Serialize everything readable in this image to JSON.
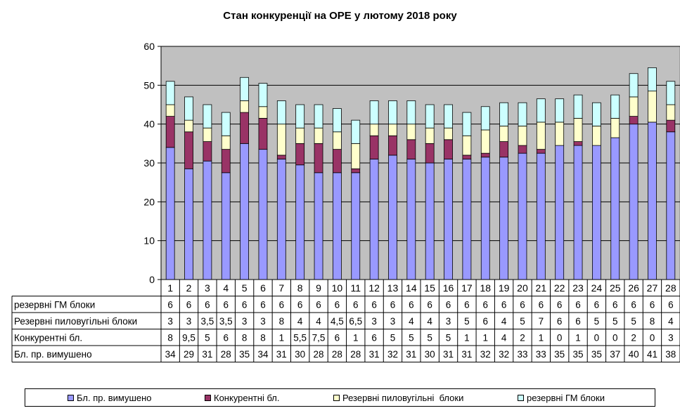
{
  "chart_data": {
    "type": "bar",
    "stacked": true,
    "title": "Стан конкуренції на ОРЕ  у лютому 2018 року",
    "categories": [
      "1",
      "2",
      "3",
      "4",
      "5",
      "6",
      "7",
      "8",
      "9",
      "10",
      "11",
      "12",
      "13",
      "14",
      "15",
      "16",
      "17",
      "18",
      "19",
      "20",
      "21",
      "22",
      "23",
      "24",
      "25",
      "26",
      "27",
      "28"
    ],
    "ylim": [
      0,
      60
    ],
    "yticks": [
      "0",
      "10",
      "20",
      "30",
      "40",
      "50",
      "60"
    ],
    "grid": true,
    "legend_position": "bottom",
    "plot_background": "#c0c0c0",
    "series": [
      {
        "name": "Бл. пр. вимушено",
        "color": "#9999ff",
        "values": [
          34,
          28.5,
          30.5,
          27.5,
          35,
          33.5,
          31,
          29.5,
          27.5,
          27.5,
          27.5,
          31,
          32,
          31,
          30,
          31,
          31,
          31.5,
          31.5,
          32.5,
          32.5,
          34.5,
          34.5,
          34.5,
          36.5,
          40,
          40.5,
          38
        ],
        "table_labels": [
          "34",
          "29",
          "31",
          "28",
          "35",
          "34",
          "31",
          "30",
          "28",
          "28",
          "28",
          "31",
          "32",
          "31",
          "30",
          "31",
          "31",
          "32",
          "32",
          "33",
          "33",
          "35",
          "35",
          "35",
          "37",
          "40",
          "41",
          "38"
        ]
      },
      {
        "name": "Конкурентні бл.",
        "color": "#993366",
        "values": [
          8,
          9.5,
          5,
          6,
          8,
          8,
          1,
          5.5,
          7.5,
          6,
          1,
          6,
          5,
          5,
          5,
          5,
          1,
          1,
          4,
          2,
          1,
          0,
          1,
          0,
          0,
          2,
          0,
          3
        ],
        "table_labels": [
          "8",
          "9,5",
          "5",
          "6",
          "8",
          "8",
          "1",
          "5,5",
          "7,5",
          "6",
          "1",
          "6",
          "5",
          "5",
          "5",
          "5",
          "1",
          "1",
          "4",
          "2",
          "1",
          "0",
          "1",
          "0",
          "0",
          "2",
          "0",
          "3"
        ]
      },
      {
        "name": "Резервні пиловугільні  блоки",
        "color": "#ffffcc",
        "values": [
          3,
          3,
          3.5,
          3.5,
          3,
          3,
          8,
          4,
          4,
          4.5,
          6.5,
          3,
          3,
          4,
          4,
          3,
          5,
          6,
          4,
          5,
          7,
          6,
          6,
          5,
          5,
          5,
          8,
          4
        ],
        "table_labels": [
          "3",
          "3",
          "3,5",
          "3,5",
          "3",
          "3",
          "8",
          "4",
          "4",
          "4,5",
          "6,5",
          "3",
          "3",
          "4",
          "4",
          "3",
          "5",
          "6",
          "4",
          "5",
          "7",
          "6",
          "6",
          "5",
          "5",
          "5",
          "8",
          "4"
        ]
      },
      {
        "name": "резервні ГМ блоки",
        "color": "#ccffff",
        "values": [
          6,
          6,
          6,
          6,
          6,
          6,
          6,
          6,
          6,
          6,
          6,
          6,
          6,
          6,
          6,
          6,
          6,
          6,
          6,
          6,
          6,
          6,
          6,
          6,
          6,
          6,
          6,
          6
        ],
        "table_labels": [
          "6",
          "6",
          "6",
          "6",
          "6",
          "6",
          "6",
          "6",
          "6",
          "6",
          "6",
          "6",
          "6",
          "6",
          "6",
          "6",
          "6",
          "6",
          "6",
          "6",
          "6",
          "6",
          "6",
          "6",
          "6",
          "6",
          "6",
          "6"
        ]
      }
    ],
    "table_rows": [
      {
        "label": "резервні ГМ блоки",
        "series_index": 3
      },
      {
        "label": "Резервні пиловугільні  блоки",
        "series_index": 2
      },
      {
        "label": "Конкурентні  бл.",
        "series_index": 1
      },
      {
        "label": "Бл. пр. вимушено",
        "series_index": 0
      }
    ],
    "legend": [
      {
        "label": "Бл. пр. вимушено",
        "color": "#9999ff"
      },
      {
        "label": "Конкурентні бл.",
        "color": "#993366"
      },
      {
        "label": "Резервні пиловугільні  блоки",
        "color": "#ffffcc"
      },
      {
        "label": "резервні ГМ блоки",
        "color": "#ccffff"
      }
    ]
  }
}
